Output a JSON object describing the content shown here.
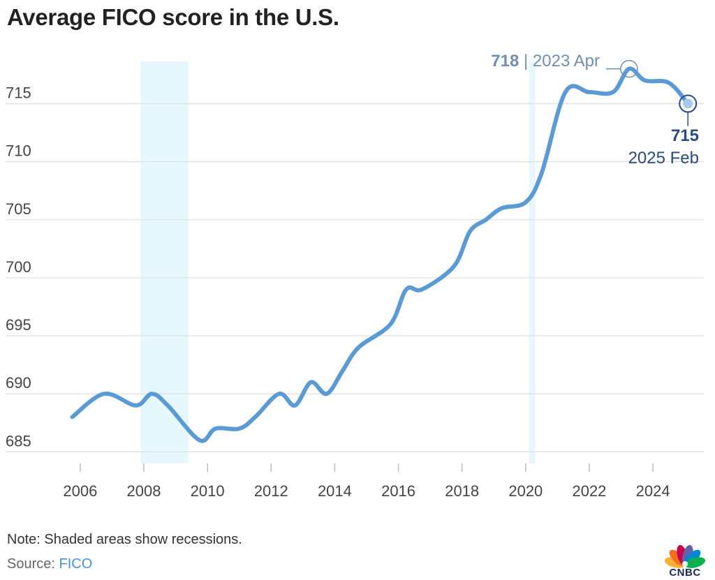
{
  "chart_data": {
    "type": "line",
    "title": "Average FICO score in the U.S.",
    "ylim": [
      684,
      719
    ],
    "xlim": [
      2005.3,
      2025.6
    ],
    "yticks": [
      685,
      690,
      695,
      700,
      705,
      710,
      715
    ],
    "xticks": [
      2006,
      2008,
      2010,
      2012,
      2014,
      2016,
      2018,
      2020,
      2022,
      2024
    ],
    "grid": true,
    "recessions": [
      [
        2007.9,
        2009.4
      ],
      [
        2020.1,
        2020.3
      ]
    ],
    "series": [
      {
        "color": "#5b9bd5",
        "x": [
          2005.75,
          2006.75,
          2007.75,
          2008.25,
          2008.75,
          2009.75,
          2010.25,
          2011.0,
          2011.5,
          2012.25,
          2012.75,
          2013.25,
          2013.75,
          2014.25,
          2014.75,
          2015.75,
          2016.25,
          2016.75,
          2017.75,
          2018.25,
          2018.75,
          2019.25,
          2020.0,
          2020.5,
          2021.25,
          2022.0,
          2022.75,
          2023.25,
          2023.75,
          2024.5,
          2025.1
        ],
        "y": [
          688,
          690,
          689,
          690,
          689,
          686,
          687,
          687,
          688,
          690,
          689,
          691,
          690,
          692,
          694,
          696,
          699,
          699,
          701,
          704,
          705,
          706,
          706.5,
          709,
          716,
          716,
          716,
          718,
          717,
          716.8,
          715
        ]
      }
    ],
    "annotations": [
      {
        "value": "718",
        "label": "2023 Apr",
        "x": 2023.25,
        "y": 718
      },
      {
        "value": "715",
        "label": "2025 Feb",
        "x": 2025.1,
        "y": 715
      }
    ]
  },
  "footer": {
    "note": "Note: Shaded areas show recessions.",
    "source_label": "Source: ",
    "source_name": "FICO"
  },
  "branding": {
    "logo_text": "CNBC"
  },
  "colors": {
    "line": "#5b9bd5",
    "recession": "#e6f8fd",
    "grid": "#dddddd",
    "annotation_peak": "#6f8fb0",
    "annotation_latest": "#2b4a7e"
  }
}
